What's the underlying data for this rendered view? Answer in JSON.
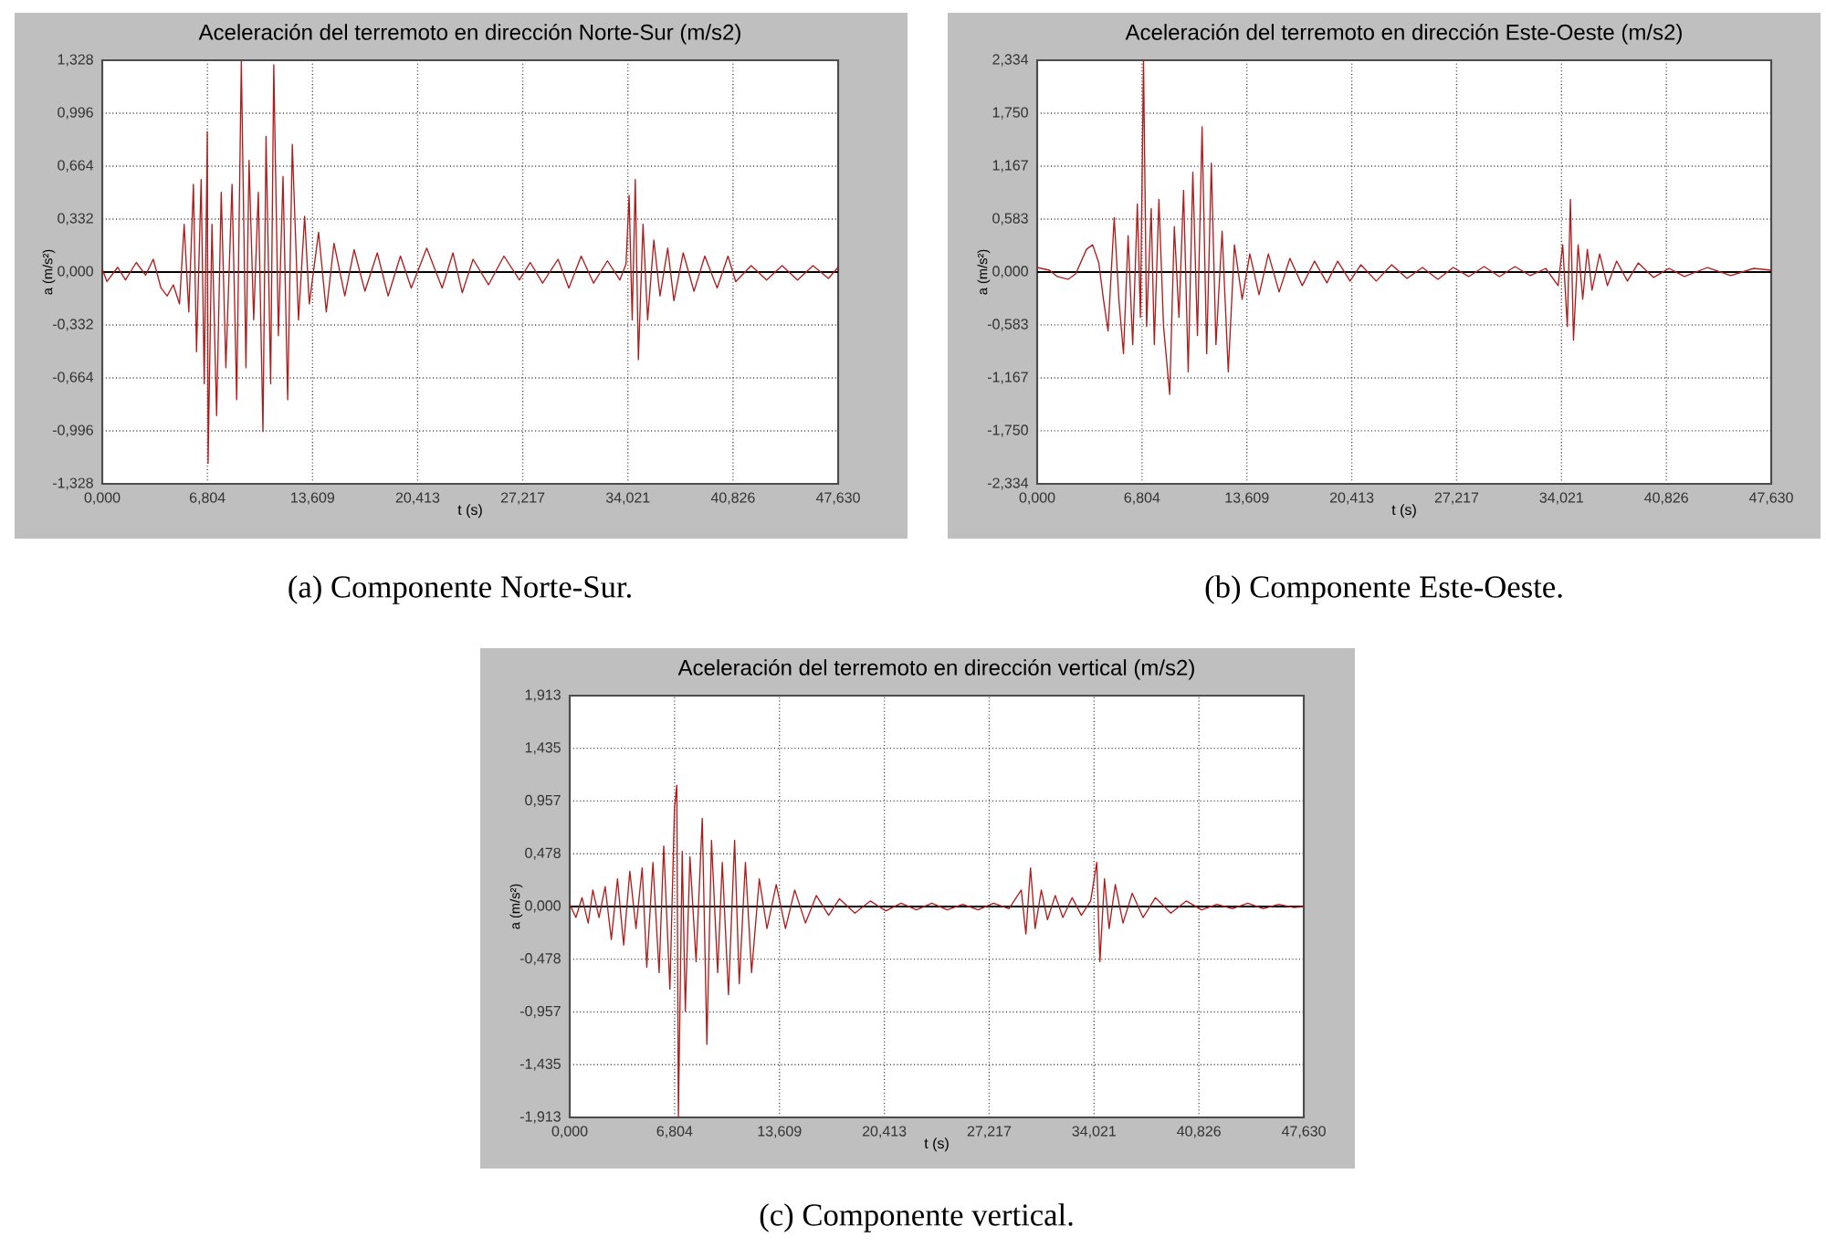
{
  "chart_data": [
    {
      "type": "line",
      "title": "Aceleración del terremoto en dirección Norte-Sur (m/s2)",
      "xlabel": "t (s)",
      "ylabel": "a (m/s²)",
      "annotations": [
        "(a) Componente Norte-Sur."
      ],
      "grid": true,
      "marker": "none",
      "line_style": "solid",
      "xlim": [
        0,
        47.63
      ],
      "ylim": [
        -1.328,
        1.328
      ],
      "xticks": [
        {
          "value": 0,
          "label": "0,000"
        },
        {
          "value": 6.804,
          "label": "6,804"
        },
        {
          "value": 13.609,
          "label": "13,609"
        },
        {
          "value": 20.413,
          "label": "20,413"
        },
        {
          "value": 27.217,
          "label": "27,217"
        },
        {
          "value": 34.021,
          "label": "34,021"
        },
        {
          "value": 40.826,
          "label": "40,826"
        },
        {
          "value": 47.63,
          "label": "47,630"
        }
      ],
      "yticks": [
        {
          "value": -1.328,
          "label": "-1,328"
        },
        {
          "value": -0.996,
          "label": "-0,996"
        },
        {
          "value": -0.664,
          "label": "-0,664"
        },
        {
          "value": -0.332,
          "label": "-0,332"
        },
        {
          "value": 0,
          "label": "0,000"
        },
        {
          "value": 0.332,
          "label": "0,332"
        },
        {
          "value": 0.664,
          "label": "0,664"
        },
        {
          "value": 0.996,
          "label": "0,996"
        },
        {
          "value": 1.328,
          "label": "1,328"
        }
      ],
      "ref_lines": [
        {
          "axis": "y",
          "value": 0,
          "color": "#000000"
        }
      ],
      "series": [
        {
          "color": "#b01c1c",
          "x": [
            0,
            0.3,
            1,
            1.5,
            2.2,
            2.8,
            3.3,
            3.8,
            4.2,
            4.6,
            5.0,
            5.3,
            5.6,
            5.9,
            6.1,
            6.4,
            6.6,
            6.8,
            6.85,
            7.1,
            7.4,
            7.7,
            8.0,
            8.4,
            8.7,
            9.0,
            9.3,
            9.5,
            9.8,
            10.1,
            10.4,
            10.6,
            10.9,
            11.1,
            11.4,
            11.7,
            12.0,
            12.3,
            12.7,
            13.1,
            13.4,
            14.0,
            14.5,
            15.0,
            15.7,
            16.3,
            17.0,
            17.8,
            18.5,
            19.3,
            20.0,
            21.0,
            22.0,
            22.7,
            23.3,
            24.0,
            25.0,
            26.0,
            27.0,
            27.7,
            28.5,
            29.5,
            30.2,
            31.0,
            31.8,
            32.7,
            33.5,
            33.9,
            34.1,
            34.3,
            34.5,
            34.7,
            35.0,
            35.3,
            35.7,
            36.1,
            36.6,
            37.0,
            37.6,
            38.3,
            39.0,
            39.8,
            40.5,
            41.0,
            42.0,
            43.0,
            44.0,
            45.0,
            46.0,
            47.0,
            47.63
          ],
          "values": [
            0.02,
            -0.06,
            0.03,
            -0.05,
            0.06,
            -0.02,
            0.08,
            -0.1,
            -0.15,
            -0.08,
            -0.2,
            0.3,
            -0.25,
            0.55,
            -0.5,
            0.58,
            -0.7,
            0.88,
            -1.2,
            0.3,
            -0.9,
            0.5,
            -0.6,
            0.55,
            -0.8,
            1.32,
            -0.6,
            0.7,
            -0.3,
            0.5,
            -1.0,
            0.85,
            -0.7,
            1.3,
            -0.4,
            0.6,
            -0.8,
            0.8,
            -0.3,
            0.35,
            -0.2,
            0.25,
            -0.25,
            0.18,
            -0.15,
            0.14,
            -0.12,
            0.12,
            -0.15,
            0.1,
            -0.1,
            0.15,
            -0.1,
            0.12,
            -0.13,
            0.08,
            -0.08,
            0.1,
            -0.05,
            0.06,
            -0.07,
            0.08,
            -0.1,
            0.1,
            -0.07,
            0.07,
            -0.05,
            0.05,
            0.48,
            -0.3,
            0.58,
            -0.55,
            0.3,
            -0.3,
            0.2,
            -0.15,
            0.15,
            -0.18,
            0.12,
            -0.12,
            0.1,
            -0.1,
            0.1,
            -0.06,
            0.04,
            -0.05,
            0.04,
            -0.05,
            0.04,
            -0.04,
            0.03
          ]
        }
      ]
    },
    {
      "type": "line",
      "title": "Aceleración del terremoto en dirección Este-Oeste  (m/s2)",
      "xlabel": "t (s)",
      "ylabel": "a (m/s²)",
      "annotations": [
        "(b) Componente Este-Oeste."
      ],
      "grid": true,
      "marker": "none",
      "line_style": "solid",
      "xlim": [
        0,
        47.63
      ],
      "ylim": [
        -2.334,
        2.334
      ],
      "xticks": [
        {
          "value": 0,
          "label": "0,000"
        },
        {
          "value": 6.804,
          "label": "6,804"
        },
        {
          "value": 13.609,
          "label": "13,609"
        },
        {
          "value": 20.413,
          "label": "20,413"
        },
        {
          "value": 27.217,
          "label": "27,217"
        },
        {
          "value": 34.021,
          "label": "34,021"
        },
        {
          "value": 40.826,
          "label": "40,826"
        },
        {
          "value": 47.63,
          "label": "47,630"
        }
      ],
      "yticks": [
        {
          "value": -2.334,
          "label": "-2,334"
        },
        {
          "value": -1.75,
          "label": "-1,750"
        },
        {
          "value": -1.167,
          "label": "-1,167"
        },
        {
          "value": -0.583,
          "label": "-0,583"
        },
        {
          "value": 0,
          "label": "0,000"
        },
        {
          "value": 0.583,
          "label": "0,583"
        },
        {
          "value": 1.167,
          "label": "1,167"
        },
        {
          "value": 1.75,
          "label": "1,750"
        },
        {
          "value": 2.334,
          "label": "2,334"
        }
      ],
      "ref_lines": [
        {
          "axis": "y",
          "value": 0,
          "color": "#000000"
        }
      ],
      "series": [
        {
          "color": "#b01c1c",
          "x": [
            0,
            0.8,
            1.3,
            2.0,
            2.5,
            3.2,
            3.6,
            4.0,
            4.3,
            4.6,
            5.0,
            5.3,
            5.6,
            5.9,
            6.2,
            6.5,
            6.7,
            6.9,
            7.1,
            7.4,
            7.6,
            7.9,
            8.2,
            8.6,
            8.9,
            9.2,
            9.5,
            9.8,
            10.1,
            10.4,
            10.7,
            11.0,
            11.3,
            11.6,
            12.0,
            12.4,
            12.8,
            13.3,
            13.8,
            14.4,
            15.0,
            15.7,
            16.4,
            17.2,
            18.0,
            18.8,
            19.5,
            20.3,
            21.0,
            22.0,
            23.0,
            24.0,
            25.0,
            26.0,
            27.0,
            28.0,
            29.0,
            30.0,
            31.0,
            32.0,
            33.0,
            33.8,
            34.1,
            34.4,
            34.6,
            34.8,
            35.1,
            35.4,
            35.7,
            36.0,
            36.5,
            37.0,
            37.6,
            38.3,
            39.0,
            40.0,
            41.0,
            42.0,
            43.5,
            45.0,
            46.5,
            47.63
          ],
          "values": [
            0.05,
            0.02,
            -0.05,
            -0.08,
            -0.02,
            0.25,
            0.3,
            0.1,
            -0.3,
            -0.65,
            0.6,
            -0.3,
            -0.9,
            0.4,
            -0.8,
            0.75,
            -0.5,
            2.33,
            -0.6,
            0.7,
            -0.8,
            0.8,
            -0.6,
            -1.35,
            0.5,
            -0.5,
            0.9,
            -1.1,
            1.1,
            -0.7,
            1.6,
            -0.9,
            1.2,
            -0.8,
            0.45,
            -1.1,
            0.3,
            -0.3,
            0.2,
            -0.25,
            0.2,
            -0.22,
            0.15,
            -0.15,
            0.12,
            -0.12,
            0.12,
            -0.1,
            0.08,
            -0.1,
            0.08,
            -0.07,
            0.05,
            -0.08,
            0.05,
            -0.05,
            0.06,
            -0.05,
            0.06,
            -0.04,
            0.04,
            -0.15,
            0.3,
            -0.6,
            0.8,
            -0.75,
            0.3,
            -0.3,
            0.25,
            -0.2,
            0.2,
            -0.15,
            0.12,
            -0.1,
            0.1,
            -0.06,
            0.04,
            -0.05,
            0.05,
            -0.04,
            0.04,
            0.02
          ]
        }
      ]
    },
    {
      "type": "line",
      "title": "Aceleración del terremoto en dirección vertical (m/s2)",
      "xlabel": "t (s)",
      "ylabel": "a (m/s²)",
      "annotations": [
        "(c) Componente vertical."
      ],
      "grid": true,
      "marker": "none",
      "line_style": "solid",
      "xlim": [
        0,
        47.63
      ],
      "ylim": [
        -1.913,
        1.913
      ],
      "xticks": [
        {
          "value": 0,
          "label": "0,000"
        },
        {
          "value": 6.804,
          "label": "6,804"
        },
        {
          "value": 13.609,
          "label": "13,609"
        },
        {
          "value": 20.413,
          "label": "20,413"
        },
        {
          "value": 27.217,
          "label": "27,217"
        },
        {
          "value": 34.021,
          "label": "34,021"
        },
        {
          "value": 40.826,
          "label": "40,826"
        },
        {
          "value": 47.63,
          "label": "47,630"
        }
      ],
      "yticks": [
        {
          "value": -1.913,
          "label": "-1,913"
        },
        {
          "value": -1.435,
          "label": "-1,435"
        },
        {
          "value": -0.957,
          "label": "-0,957"
        },
        {
          "value": -0.478,
          "label": "-0,478"
        },
        {
          "value": 0,
          "label": "0,000"
        },
        {
          "value": 0.478,
          "label": "0,478"
        },
        {
          "value": 0.957,
          "label": "0,957"
        },
        {
          "value": 1.435,
          "label": "1,435"
        },
        {
          "value": 1.913,
          "label": "1,913"
        }
      ],
      "ref_lines": [
        {
          "axis": "y",
          "value": 0,
          "color": "#000000"
        }
      ],
      "series": [
        {
          "color": "#b01c1c",
          "x": [
            0,
            0.4,
            0.8,
            1.2,
            1.5,
            1.9,
            2.3,
            2.7,
            3.1,
            3.5,
            3.9,
            4.3,
            4.7,
            5.0,
            5.4,
            5.8,
            6.1,
            6.5,
            6.8,
            6.95,
            7.05,
            7.3,
            7.5,
            7.8,
            8.2,
            8.6,
            8.9,
            9.2,
            9.6,
            9.9,
            10.3,
            10.7,
            11.0,
            11.4,
            11.8,
            12.3,
            12.8,
            13.4,
            14.0,
            14.6,
            15.3,
            16.0,
            16.8,
            17.5,
            18.5,
            19.5,
            20.5,
            21.5,
            22.5,
            23.5,
            24.5,
            25.5,
            26.5,
            27.5,
            28.5,
            29.3,
            29.6,
            29.9,
            30.2,
            30.6,
            31.0,
            31.5,
            32.0,
            32.6,
            33.2,
            33.8,
            34.2,
            34.4,
            34.7,
            35.0,
            35.4,
            35.9,
            36.5,
            37.2,
            38.0,
            39.0,
            40.0,
            41.0,
            42.0,
            43.0,
            44.0,
            45.0,
            46.0,
            47.0,
            47.63
          ],
          "values": [
            0.02,
            -0.1,
            0.08,
            -0.15,
            0.15,
            -0.1,
            0.18,
            -0.3,
            0.25,
            -0.35,
            0.32,
            -0.2,
            0.35,
            -0.55,
            0.4,
            -0.6,
            0.55,
            -0.75,
            0.9,
            1.1,
            -1.91,
            0.5,
            -0.95,
            0.45,
            -0.5,
            0.8,
            -1.25,
            0.6,
            -0.6,
            0.4,
            -0.8,
            0.6,
            -0.7,
            0.4,
            -0.6,
            0.25,
            -0.2,
            0.2,
            -0.2,
            0.15,
            -0.15,
            0.1,
            -0.08,
            0.07,
            -0.06,
            0.05,
            -0.04,
            0.03,
            -0.03,
            0.03,
            -0.03,
            0.02,
            -0.03,
            0.03,
            -0.02,
            0.15,
            -0.25,
            0.35,
            -0.2,
            0.15,
            -0.12,
            0.1,
            -0.1,
            0.08,
            -0.08,
            0.05,
            0.4,
            -0.5,
            0.25,
            -0.2,
            0.2,
            -0.15,
            0.12,
            -0.1,
            0.08,
            -0.06,
            0.05,
            -0.03,
            0.02,
            -0.02,
            0.03,
            -0.02,
            0.02,
            -0.01,
            0.0
          ]
        }
      ]
    }
  ]
}
